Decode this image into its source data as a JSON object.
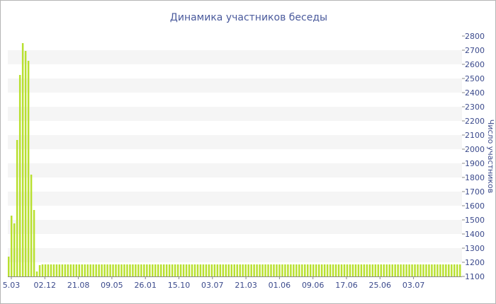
{
  "chart_data": {
    "type": "bar",
    "title": "Динамика участников беседы",
    "xlabel": "",
    "ylabel": "Число участников",
    "ylim": [
      1100,
      2800
    ],
    "yticks": [
      1100,
      1200,
      1300,
      1400,
      1500,
      1600,
      1700,
      1800,
      1900,
      2000,
      2100,
      2200,
      2300,
      2400,
      2500,
      2600,
      2700,
      2800
    ],
    "x_tick_labels": [
      "5.03",
      "02.12",
      "21.08",
      "09.05",
      "26.01",
      "15.10",
      "03.07",
      "21.03",
      "01.06",
      "09.06",
      "17.06",
      "25.06",
      "03.07"
    ],
    "values": [
      1240,
      1530,
      1475,
      2065,
      2525,
      2750,
      2695,
      2625,
      1820,
      1570,
      1135,
      1180,
      1185,
      1185,
      1185,
      1185,
      1185,
      1185,
      1185,
      1185,
      1185,
      1185,
      1185,
      1185,
      1185,
      1185,
      1185,
      1185,
      1185,
      1185,
      1185,
      1185,
      1185,
      1185,
      1185,
      1185,
      1185,
      1185,
      1185,
      1185,
      1185,
      1185,
      1185,
      1185,
      1185,
      1185,
      1185,
      1185,
      1185,
      1185,
      1185,
      1185,
      1185,
      1185,
      1185,
      1185,
      1185,
      1185,
      1185,
      1185,
      1185,
      1185,
      1185,
      1185,
      1185,
      1185,
      1185,
      1185,
      1185,
      1185,
      1185,
      1185,
      1185,
      1185,
      1185,
      1185,
      1185,
      1185,
      1185,
      1185,
      1185,
      1185,
      1185,
      1185,
      1185,
      1185,
      1185,
      1185,
      1185,
      1185,
      1185,
      1185,
      1185,
      1185,
      1185,
      1185,
      1185,
      1185,
      1185,
      1185,
      1185,
      1185,
      1185,
      1185,
      1185,
      1185,
      1185,
      1185,
      1185,
      1185,
      1185,
      1185,
      1185,
      1185,
      1185,
      1185,
      1185,
      1185,
      1185,
      1185,
      1185,
      1185,
      1185,
      1185,
      1185,
      1185,
      1185,
      1185,
      1185,
      1185,
      1185,
      1185,
      1185,
      1185,
      1185,
      1185,
      1185,
      1185,
      1185,
      1185,
      1185,
      1185,
      1185,
      1185,
      1185,
      1185,
      1185,
      1185,
      1185,
      1185,
      1185,
      1185,
      1185,
      1185,
      1185,
      1185,
      1185,
      1185,
      1185,
      1185,
      1185
    ],
    "grid": true,
    "bar_color": "#b8e02f",
    "band_color": "#f5f5f5",
    "text_color": "#3b4a8c"
  }
}
